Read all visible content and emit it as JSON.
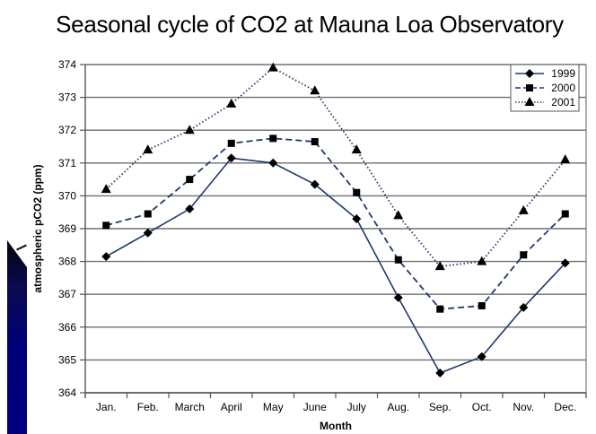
{
  "chart_data": {
    "type": "line",
    "title": "Seasonal cycle of CO2 at Mauna Loa Observatory",
    "xlabel": "Month",
    "ylabel": "atmospheric pCO2 (ppm)",
    "categories": [
      "Jan.",
      "Feb.",
      "March",
      "April",
      "May",
      "June",
      "July",
      "Aug.",
      "Sep.",
      "Oct.",
      "Nov.",
      "Dec."
    ],
    "ylim": [
      364,
      374
    ],
    "yticks": [
      364,
      365,
      366,
      367,
      368,
      369,
      370,
      371,
      372,
      373,
      374
    ],
    "grid": true,
    "legend_position": "top-right",
    "series": [
      {
        "name": "1999",
        "marker": "diamond",
        "line": "solid",
        "color": "#1f3a6b",
        "values": [
          368.15,
          368.87,
          369.6,
          371.15,
          371.0,
          370.35,
          369.3,
          366.9,
          364.6,
          365.1,
          366.6,
          367.95
        ]
      },
      {
        "name": "2000",
        "marker": "square",
        "line": "dashed",
        "color": "#1f3a6b",
        "values": [
          369.1,
          369.45,
          370.5,
          371.6,
          371.75,
          371.65,
          370.1,
          368.05,
          366.55,
          366.65,
          368.2,
          369.45
        ]
      },
      {
        "name": "2001",
        "marker": "triangle",
        "line": "dotted",
        "color": "#1f3a6b",
        "values": [
          370.2,
          371.4,
          372.0,
          372.8,
          373.9,
          373.2,
          371.4,
          369.4,
          367.85,
          368.0,
          369.55,
          371.1
        ]
      }
    ]
  }
}
